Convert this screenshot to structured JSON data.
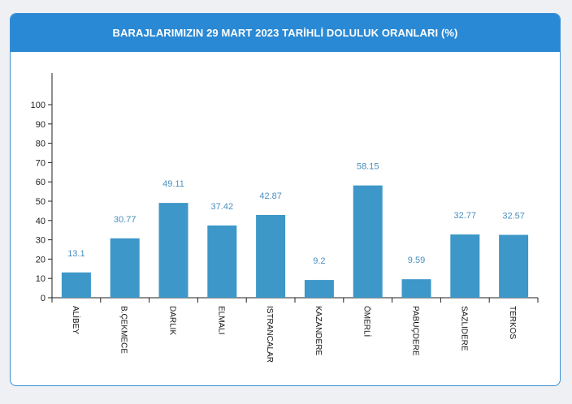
{
  "header": {
    "title": "BARAJLARIMIZIN 29 MART 2023 TARİHLİ DOLULUK ORANLARI (%)"
  },
  "colors": {
    "header": "#2a89d4",
    "bar": "#3d97c8",
    "label": "#4a8fbf",
    "axis": "#222222"
  },
  "chart_data": {
    "type": "bar",
    "title": "BARAJLARIMIZIN 29 MART 2023 TARİHLİ DOLULUK ORANLARI (%)",
    "categories": [
      "ALİBEY",
      "B.ÇEKMECE",
      "DARLIK",
      "ELMALI",
      "ISTRANCALAR",
      "KAZANDERE",
      "ÖMERLİ",
      "PABUÇDERE",
      "SAZLIDERE",
      "TERKOS"
    ],
    "values": [
      13.1,
      30.77,
      49.11,
      37.42,
      42.87,
      9.2,
      58.15,
      9.59,
      32.77,
      32.57
    ],
    "value_labels": [
      "13.1",
      "30.77",
      "49.11",
      "37.42",
      "42.87",
      "9.2",
      "58.15",
      "9.59",
      "32.77",
      "32.57"
    ],
    "yticks": [
      "0",
      "10",
      "20",
      "30",
      "40",
      "50",
      "60",
      "70",
      "80",
      "90",
      "100"
    ],
    "ylim": [
      0,
      110
    ],
    "grid": false,
    "legend": "none"
  }
}
